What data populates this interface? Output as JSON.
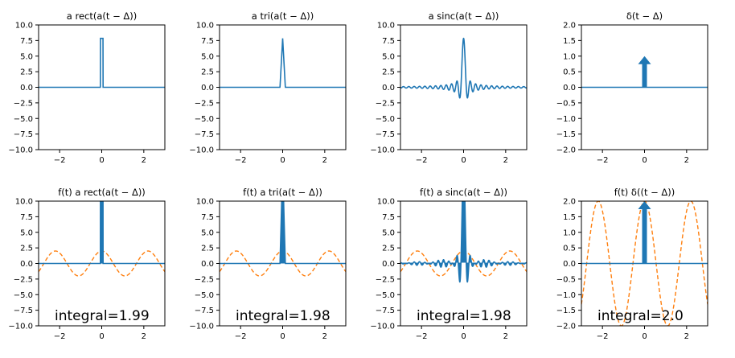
{
  "chart_data": [
    {
      "type": "line",
      "title": "a rect(a(t − Δ))",
      "xlabel": "",
      "ylabel": "",
      "xlim": [
        -3,
        3
      ],
      "ylim": [
        -10,
        10
      ],
      "xticks": [
        "−2",
        "0",
        "2"
      ],
      "yticks": [
        "10.0",
        "7.5",
        "5.0",
        "2.5",
        "0.0",
        "−2.5",
        "−5.0",
        "−7.5",
        "−10.0"
      ],
      "grid": false,
      "series": [
        {
          "kind": "rect",
          "color": "#1f77b4",
          "amplitude": 7.85,
          "width": 0.127
        }
      ]
    },
    {
      "type": "line",
      "title": "a tri(a(t − Δ))",
      "xlabel": "",
      "ylabel": "",
      "xlim": [
        -3,
        3
      ],
      "ylim": [
        -10,
        10
      ],
      "xticks": [
        "−2",
        "0",
        "2"
      ],
      "yticks": [
        "10.0",
        "7.5",
        "5.0",
        "2.5",
        "0.0",
        "−2.5",
        "−5.0",
        "−7.5",
        "−10.0"
      ],
      "grid": false,
      "series": [
        {
          "kind": "tri",
          "color": "#1f77b4",
          "amplitude": 7.85,
          "width": 0.127
        }
      ]
    },
    {
      "type": "line",
      "title": "a sinc(a(t − Δ))",
      "xlabel": "",
      "ylabel": "",
      "xlim": [
        -3,
        3
      ],
      "ylim": [
        -10,
        10
      ],
      "xticks": [
        "−2",
        "0",
        "2"
      ],
      "yticks": [
        "10.0",
        "7.5",
        "5.0",
        "2.5",
        "0.0",
        "−2.5",
        "−5.0",
        "−7.5",
        "−10.0"
      ],
      "grid": false,
      "series": [
        {
          "kind": "sinc",
          "color": "#1f77b4",
          "amplitude": 7.85,
          "width": 0.127
        }
      ]
    },
    {
      "type": "line",
      "title": "δ(t − Δ)",
      "xlabel": "",
      "ylabel": "",
      "xlim": [
        -3,
        3
      ],
      "ylim": [
        -2,
        2
      ],
      "xticks": [
        "−2",
        "0",
        "2"
      ],
      "yticks": [
        "2.0",
        "1.5",
        "1.0",
        "0.5",
        "0.0",
        "−0.5",
        "−1.0",
        "−1.5",
        "−2.0"
      ],
      "grid": false,
      "series": [
        {
          "kind": "delta",
          "color": "#1f77b4",
          "amplitude": 1.0
        }
      ]
    },
    {
      "type": "line",
      "title": "f(t) a rect(a(t − Δ))",
      "xlabel": "",
      "ylabel": "",
      "xlim": [
        -3,
        3
      ],
      "ylim": [
        -10,
        10
      ],
      "xticks": [
        "−2",
        "0",
        "2"
      ],
      "yticks": [
        "10.0",
        "7.5",
        "5.0",
        "2.5",
        "0.0",
        "−2.5",
        "−5.0",
        "−7.5",
        "−10.0"
      ],
      "grid": false,
      "annotation": "integral=1.99",
      "series": [
        {
          "kind": "product-rect",
          "color": "#1f77b4",
          "amplitude": 15.7,
          "width": 0.127
        },
        {
          "kind": "cosine",
          "color": "#ff7f0e",
          "dashed": true,
          "amplitude": 2.0,
          "period": 2.2
        }
      ]
    },
    {
      "type": "line",
      "title": "f(t) a tri(a(t − Δ))",
      "xlabel": "",
      "ylabel": "",
      "xlim": [
        -3,
        3
      ],
      "ylim": [
        -10,
        10
      ],
      "xticks": [
        "−2",
        "0",
        "2"
      ],
      "yticks": [
        "10.0",
        "7.5",
        "5.0",
        "2.5",
        "0.0",
        "−2.5",
        "−5.0",
        "−7.5",
        "−10.0"
      ],
      "grid": false,
      "annotation": "integral=1.98",
      "series": [
        {
          "kind": "product-tri",
          "color": "#1f77b4",
          "amplitude": 15.7,
          "width": 0.127
        },
        {
          "kind": "cosine",
          "color": "#ff7f0e",
          "dashed": true,
          "amplitude": 2.0,
          "period": 2.2
        }
      ]
    },
    {
      "type": "line",
      "title": "f(t) a sinc(a(t − Δ))",
      "xlabel": "",
      "ylabel": "",
      "xlim": [
        -3,
        3
      ],
      "ylim": [
        -10,
        10
      ],
      "xticks": [
        "−2",
        "0",
        "2"
      ],
      "yticks": [
        "10.0",
        "7.5",
        "5.0",
        "2.5",
        "0.0",
        "−2.5",
        "−5.0",
        "−7.5",
        "−10.0"
      ],
      "grid": false,
      "annotation": "integral=1.98",
      "series": [
        {
          "kind": "product-sinc",
          "color": "#1f77b4",
          "amplitude": 15.7,
          "width": 0.127
        },
        {
          "kind": "cosine",
          "color": "#ff7f0e",
          "dashed": true,
          "amplitude": 2.0,
          "period": 2.2
        }
      ]
    },
    {
      "type": "line",
      "title": "f(t) δ((t − Δ))",
      "xlabel": "",
      "ylabel": "",
      "xlim": [
        -3,
        3
      ],
      "ylim": [
        -2,
        2
      ],
      "xticks": [
        "−2",
        "0",
        "2"
      ],
      "yticks": [
        "2.0",
        "1.5",
        "1.0",
        "0.5",
        "0.0",
        "−0.5",
        "−1.0",
        "−1.5",
        "−2.0"
      ],
      "grid": false,
      "annotation": "integral=2.0",
      "series": [
        {
          "kind": "delta",
          "color": "#1f77b4",
          "amplitude": 2.0
        },
        {
          "kind": "cosine",
          "color": "#ff7f0e",
          "dashed": true,
          "amplitude": 2.0,
          "period": 2.2
        }
      ]
    }
  ]
}
